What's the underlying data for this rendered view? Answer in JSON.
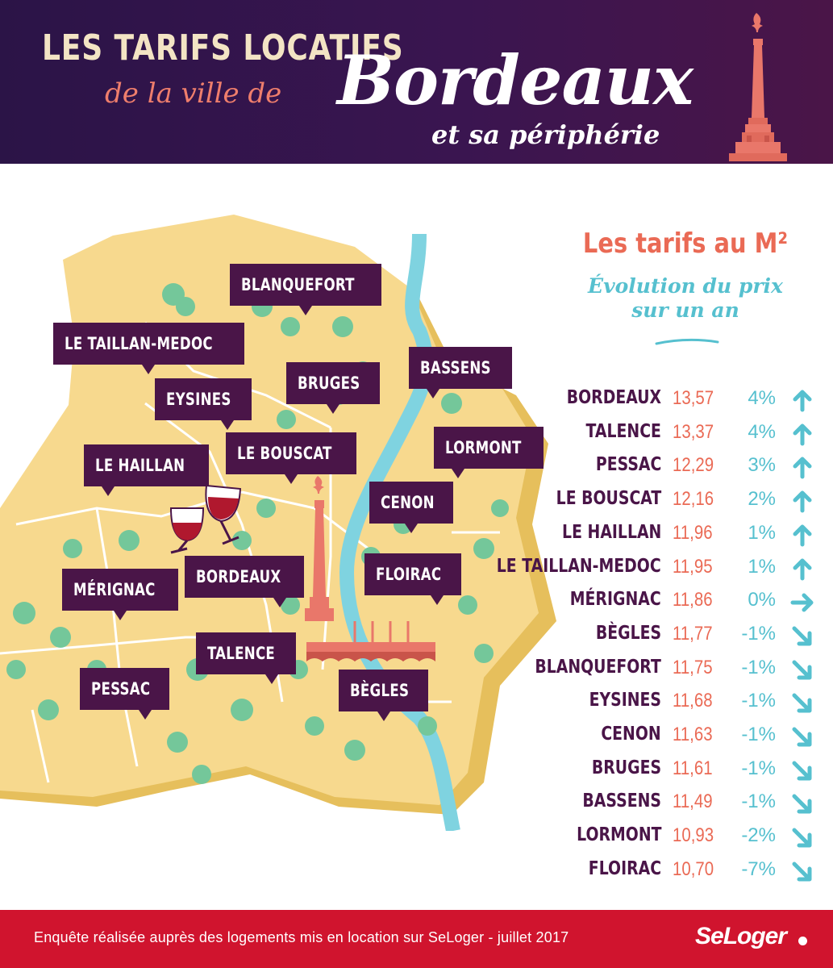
{
  "header": {
    "line1": "LES TARIFS LOCATIFS",
    "line2": "de la ville de",
    "city": "Bordeaux",
    "line3": "et sa périphérie",
    "monument_icon": "monument-aux-girondins-icon"
  },
  "map": {
    "labels": {
      "blanquefort": "BLANQUEFORT",
      "taillan": "LE TAILLAN-MEDOC",
      "bassens": "BASSENS",
      "bruges": "BRUGES",
      "eysines": "EYSINES",
      "lormont": "LORMONT",
      "haillan": "LE HAILLAN",
      "bouscat": "LE BOUSCAT",
      "cenon": "CENON",
      "merignac": "MÉRIGNAC",
      "bordeaux": "BORDEAUX",
      "floirac": "FLOIRAC",
      "talence": "TALENCE",
      "pessac": "PESSAC",
      "begles": "BÈGLES"
    },
    "colors": {
      "land": "#f7d98e",
      "land_edge": "#e6bf5c",
      "river": "#7fd3e0",
      "label_bg": "#4a1548",
      "tree": "#74c79a",
      "monument": "#e9776a"
    },
    "icons": [
      "tree-icon",
      "wine-glasses-icon",
      "monument-icon",
      "bridge-icon"
    ]
  },
  "panel": {
    "title": "Les tarifs au M²",
    "subtitle_line1": "Évolution du prix",
    "subtitle_line2": "sur un an",
    "rows": [
      {
        "city": "BORDEAUX",
        "price": "13,57",
        "change": "4%",
        "trend": "up"
      },
      {
        "city": "TALENCE",
        "price": "13,37",
        "change": "4%",
        "trend": "up"
      },
      {
        "city": "PESSAC",
        "price": "12,29",
        "change": "3%",
        "trend": "up"
      },
      {
        "city": "LE BOUSCAT",
        "price": "12,16",
        "change": "2%",
        "trend": "up"
      },
      {
        "city": "LE HAILLAN",
        "price": "11,96",
        "change": "1%",
        "trend": "up"
      },
      {
        "city": "LE TAILLAN-MEDOC",
        "price": "11,95",
        "change": "1%",
        "trend": "up"
      },
      {
        "city": "MÉRIGNAC",
        "price": "11,86",
        "change": "0%",
        "trend": "flat"
      },
      {
        "city": "BÈGLES",
        "price": "11,77",
        "change": "-1%",
        "trend": "down"
      },
      {
        "city": "BLANQUEFORT",
        "price": "11,75",
        "change": "-1%",
        "trend": "down"
      },
      {
        "city": "EYSINES",
        "price": "11,68",
        "change": "-1%",
        "trend": "down"
      },
      {
        "city": "CENON",
        "price": "11,63",
        "change": "-1%",
        "trend": "down"
      },
      {
        "city": "BRUGES",
        "price": "11,61",
        "change": "-1%",
        "trend": "down"
      },
      {
        "city": "BASSENS",
        "price": "11,49",
        "change": "-1%",
        "trend": "down"
      },
      {
        "city": "LORMONT",
        "price": "10,93",
        "change": "-2%",
        "trend": "down"
      },
      {
        "city": "FLOIRAC",
        "price": "10,70",
        "change": "-7%",
        "trend": "down"
      }
    ],
    "colors": {
      "city": "#4a1548",
      "price": "#ea6a55",
      "change": "#56c0cf"
    }
  },
  "footer": {
    "text": "Enquête réalisée auprès des logements mis en location sur SeLoger - juillet 2017",
    "logo": "SeLoger",
    "bg": "#d0142e"
  }
}
